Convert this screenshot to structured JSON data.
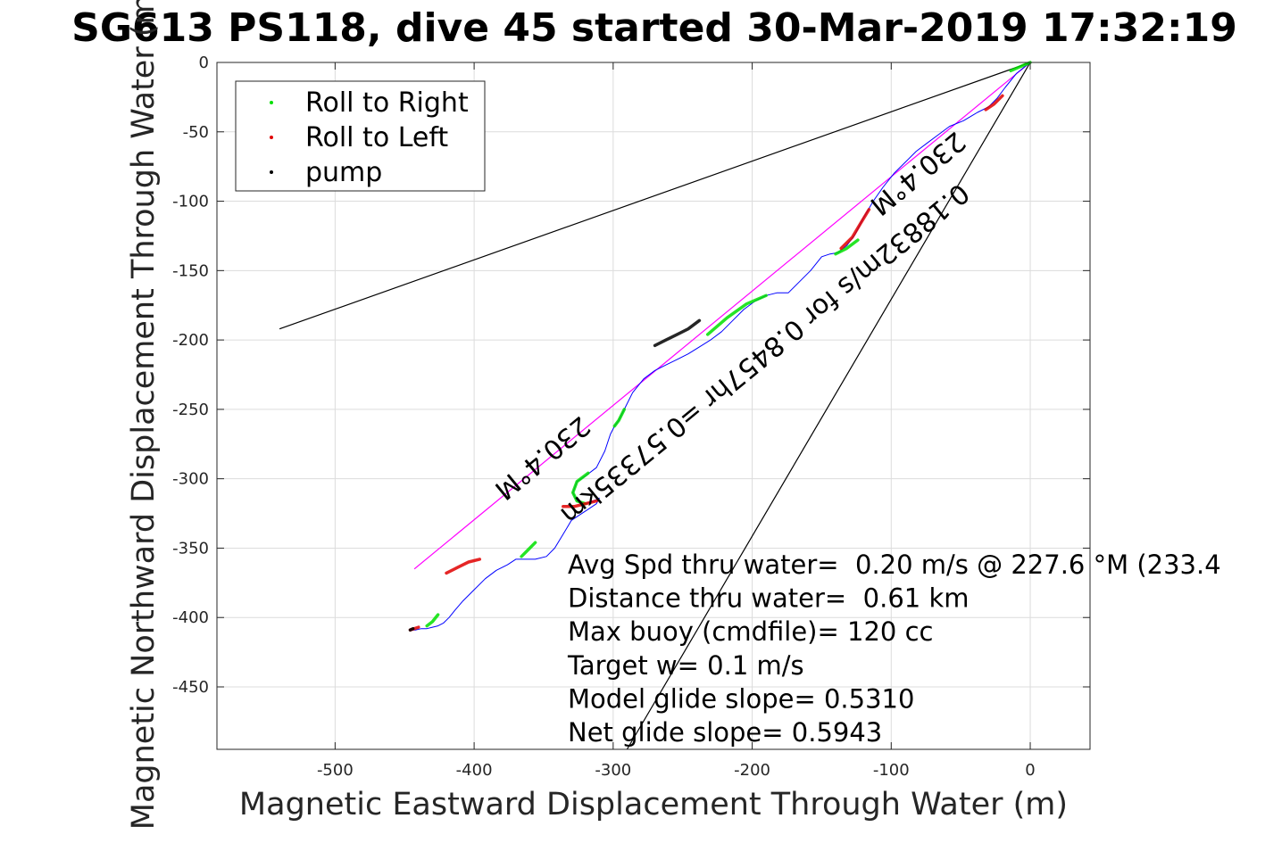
{
  "chart_data": {
    "type": "scatter",
    "title": "SG613 PS118, dive 45 started 30-Mar-2019 17:32:19",
    "xlabel": "Magnetic Eastward Displacement Through Water (m)",
    "ylabel": "Magnetic Northward Displacement Through Water (m)",
    "xlim": [
      -585,
      43
    ],
    "ylim": [
      -495,
      0
    ],
    "xticks": [
      -500,
      -400,
      -300,
      -200,
      -100,
      0
    ],
    "yticks": [
      0,
      -50,
      -100,
      -150,
      -200,
      -250,
      -300,
      -350,
      -400,
      -450
    ],
    "grid": true,
    "legend_position": "top-left",
    "legend": [
      {
        "name": "Roll to Right",
        "color": "#00e000"
      },
      {
        "name": "Roll to Left",
        "color": "#e00000"
      },
      {
        "name": "pump",
        "color": "#000000"
      }
    ],
    "track": {
      "color": "#0000ff",
      "x": [
        0,
        -10,
        -18,
        -24,
        -30,
        -38,
        -48,
        -58,
        -66,
        -74,
        -82,
        -90,
        -98,
        -106,
        -113,
        -120,
        -126,
        -132,
        -138,
        -144,
        -150,
        -158,
        -166,
        -174,
        -182,
        -190,
        -198,
        -206,
        -214,
        -222,
        -230,
        -238,
        -246,
        -254,
        -262,
        -270,
        -278,
        -286,
        -292,
        -296,
        -299,
        -302,
        -306,
        -312,
        -320,
        -326,
        -329,
        -326,
        -320,
        -314,
        -310,
        -312,
        -318,
        -324,
        -330,
        -336,
        -342,
        -348,
        -356,
        -362,
        -366,
        -370,
        -376,
        -384,
        -392,
        -400,
        -408,
        -414,
        -418,
        -422,
        -426,
        -430,
        -434,
        -438,
        -442,
        -446
      ],
      "y": [
        0,
        -8,
        -18,
        -26,
        -32,
        -36,
        -42,
        -46,
        -52,
        -58,
        -64,
        -72,
        -80,
        -90,
        -100,
        -112,
        -124,
        -132,
        -137,
        -138,
        -140,
        -150,
        -158,
        -166,
        -166,
        -168,
        -172,
        -178,
        -186,
        -194,
        -200,
        -205,
        -210,
        -214,
        -218,
        -222,
        -228,
        -238,
        -250,
        -258,
        -262,
        -268,
        -280,
        -292,
        -298,
        -302,
        -310,
        -316,
        -318,
        -316,
        -314,
        -318,
        -322,
        -326,
        -330,
        -340,
        -350,
        -356,
        -358,
        -358,
        -358,
        -358,
        -362,
        -366,
        -372,
        -380,
        -388,
        -395,
        -400,
        -404,
        -406,
        -407,
        -408,
        -408,
        -409,
        -409
      ]
    },
    "roll_right_segments": [
      {
        "x": [
          0,
          -14
        ],
        "y": [
          0,
          -6
        ]
      },
      {
        "x": [
          -124,
          -132,
          -140
        ],
        "y": [
          -128,
          -134,
          -138
        ]
      },
      {
        "x": [
          -190,
          -204,
          -218,
          -232
        ],
        "y": [
          -168,
          -174,
          -184,
          -196
        ]
      },
      {
        "x": [
          -292,
          -296,
          -299
        ],
        "y": [
          -250,
          -258,
          -262
        ]
      },
      {
        "x": [
          -318,
          -326,
          -329,
          -326,
          -320
        ],
        "y": [
          -296,
          -302,
          -310,
          -316,
          -318
        ]
      },
      {
        "x": [
          -356,
          -362,
          -366
        ],
        "y": [
          -346,
          -352,
          -356
        ]
      },
      {
        "x": [
          -426,
          -430,
          -434
        ],
        "y": [
          -398,
          -403,
          -406
        ]
      }
    ],
    "roll_left_segments": [
      {
        "x": [
          -20,
          -26,
          -32
        ],
        "y": [
          -24,
          -30,
          -34
        ]
      },
      {
        "x": [
          -116,
          -122,
          -128,
          -136
        ],
        "y": [
          -106,
          -116,
          -126,
          -134
        ]
      },
      {
        "x": [
          -312,
          -320,
          -328,
          -336
        ],
        "y": [
          -316,
          -318,
          -320,
          -320
        ]
      },
      {
        "x": [
          -396,
          -404,
          -412,
          -420
        ],
        "y": [
          -358,
          -360,
          -364,
          -368
        ]
      },
      {
        "x": [
          -440,
          -446
        ],
        "y": [
          -407,
          -409
        ]
      }
    ],
    "pump_segments": [
      {
        "x": [
          -238,
          -246,
          -254,
          -262,
          -270
        ],
        "y": [
          -186,
          -192,
          -196,
          -200,
          -204
        ]
      },
      {
        "x": [
          -444,
          -446
        ],
        "y": [
          -408,
          -409
        ]
      }
    ],
    "reference_lines": [
      {
        "name": "heading",
        "color": "#ff00ff",
        "x": [
          0,
          -443
        ],
        "y": [
          0,
          -365
        ]
      },
      {
        "name": "fan-upper",
        "color": "#000000",
        "x": [
          0,
          -540
        ],
        "y": [
          0,
          -192
        ]
      },
      {
        "name": "fan-lower",
        "color": "#000000",
        "x": [
          0,
          -290
        ],
        "y": [
          0,
          -495
        ]
      }
    ],
    "annotations": [
      {
        "text": "230.4°M",
        "x": -85,
        "y": -75
      },
      {
        "text": "0.18832m/s for 0.8457hr =0.57335km",
        "x": -195,
        "y": -205
      },
      {
        "text": "230.4°M",
        "x": -355,
        "y": -280
      }
    ],
    "info_lines": [
      "Avg Spd thru water=  0.20 m/s @ 227.6 °M (233.4",
      "Distance thru water=  0.61 km",
      "Max buoy (cmdfile)= 120 cc",
      "Target w= 0.1 m/s",
      "Model glide slope= 0.5310",
      "Net glide slope= 0.5943"
    ]
  }
}
